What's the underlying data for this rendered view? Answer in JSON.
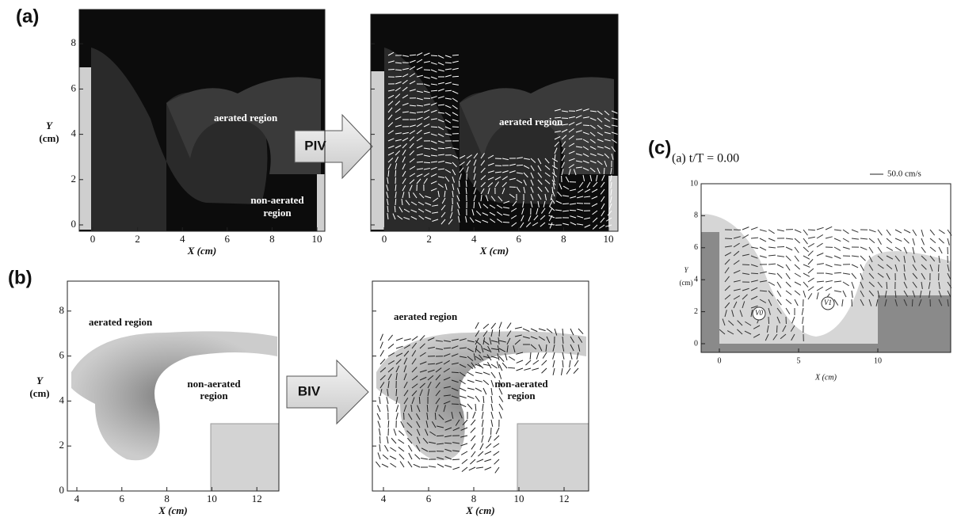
{
  "panel_a": {
    "label": "(a)",
    "method": "PIV",
    "left": {
      "y_label": "Y",
      "y_unit": "(cm)",
      "yticks": [
        0,
        2,
        4,
        6,
        8
      ],
      "xticks": [
        0,
        2,
        4,
        6,
        8,
        10
      ],
      "x_label": "X (cm)",
      "annotations": [
        "aerated region",
        "non-aerated",
        "region"
      ]
    },
    "right": {
      "xticks": [
        0,
        2,
        4,
        6,
        8,
        10
      ],
      "x_label": "X (cm)",
      "annotations": [
        "aerated region"
      ]
    }
  },
  "panel_b": {
    "label": "(b)",
    "method": "BIV",
    "left": {
      "y_label": "Y",
      "y_unit": "(cm)",
      "yticks": [
        0,
        2,
        4,
        6,
        8
      ],
      "xticks": [
        4,
        6,
        8,
        10,
        12
      ],
      "x_label": "X (cm)",
      "annotations": [
        "aerated region",
        "non-aerated",
        "region"
      ]
    },
    "right": {
      "xticks": [
        4,
        6,
        8,
        10,
        12
      ],
      "x_label": "X (cm)",
      "annotations": [
        "aerated region",
        "non-aerated",
        "region"
      ]
    }
  },
  "panel_c": {
    "label": "(c)",
    "title": "(a) t/T = 0.00",
    "scale": "50.0 cm/s",
    "y_label": "Y",
    "y_unit": "(cm)",
    "yticks": [
      0,
      2,
      4,
      6,
      8,
      10
    ],
    "xticks": [
      0,
      5,
      10
    ],
    "x_label": "X (cm)",
    "vortex_labels": [
      "V0",
      "V1"
    ]
  }
}
